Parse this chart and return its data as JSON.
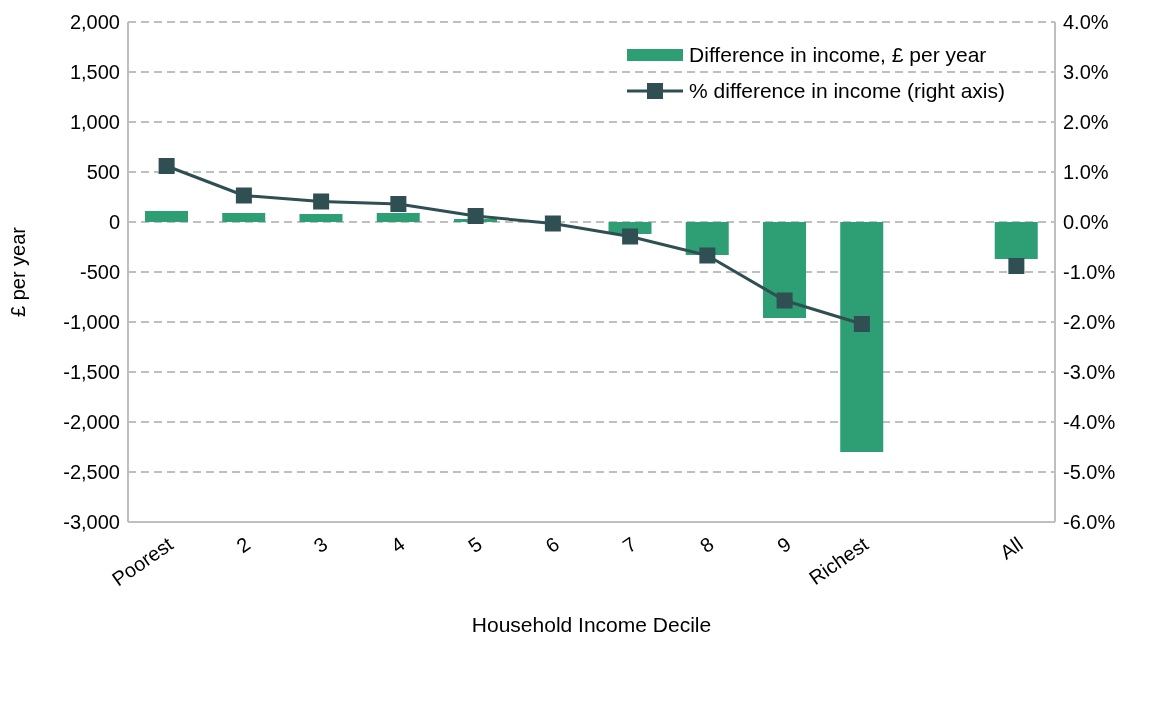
{
  "chart_data": {
    "type": "bar",
    "xlabel": "Household Income Decile",
    "ylabel": "£ per year",
    "categories": [
      "Poorest",
      "2",
      "3",
      "4",
      "5",
      "6",
      "7",
      "8",
      "9",
      "Richest",
      null,
      "All"
    ],
    "series": [
      {
        "name": "Difference in income, £ per year",
        "color": "#2e9e74",
        "values": [
          110,
          90,
          80,
          90,
          30,
          null,
          -120,
          -330,
          -960,
          -2300,
          null,
          -370
        ]
      },
      {
        "name": "% difference in income (right axis)",
        "type": "line",
        "axis": "y2",
        "color": "#2f4f52",
        "values": [
          1.12,
          0.53,
          0.41,
          0.36,
          0.12,
          -0.03,
          -0.29,
          -0.67,
          -1.57,
          -2.04,
          null,
          -0.88
        ]
      }
    ],
    "ylim": [
      -3000,
      2000
    ],
    "yticks": [
      {
        "value": -3000,
        "label": "-3,000"
      },
      {
        "value": -2500,
        "label": "-2,500"
      },
      {
        "value": -2000,
        "label": "-2,000"
      },
      {
        "value": -1500,
        "label": "-1,500"
      },
      {
        "value": -1000,
        "label": "-1,000"
      },
      {
        "value": -500,
        "label": "-500"
      },
      {
        "value": 0,
        "label": "0"
      },
      {
        "value": 500,
        "label": "500"
      },
      {
        "value": 1000,
        "label": "1,000"
      },
      {
        "value": 1500,
        "label": "1,500"
      },
      {
        "value": 2000,
        "label": "2,000"
      }
    ],
    "y2lim": [
      -6,
      4
    ],
    "y2ticks": [
      {
        "value": -6,
        "label": "-6.0%"
      },
      {
        "value": -5,
        "label": "-5.0%"
      },
      {
        "value": -4,
        "label": "-4.0%"
      },
      {
        "value": -3,
        "label": "-3.0%"
      },
      {
        "value": -2,
        "label": "-2.0%"
      },
      {
        "value": -1,
        "label": "-1.0%"
      },
      {
        "value": 0,
        "label": "0.0%"
      },
      {
        "value": 1,
        "label": "1.0%"
      },
      {
        "value": 2,
        "label": "2.0%"
      },
      {
        "value": 3,
        "label": "3.0%"
      },
      {
        "value": 4,
        "label": "4.0%"
      }
    ],
    "grid": "y",
    "legend": "top right",
    "marker": "square",
    "line_style": "solid"
  }
}
